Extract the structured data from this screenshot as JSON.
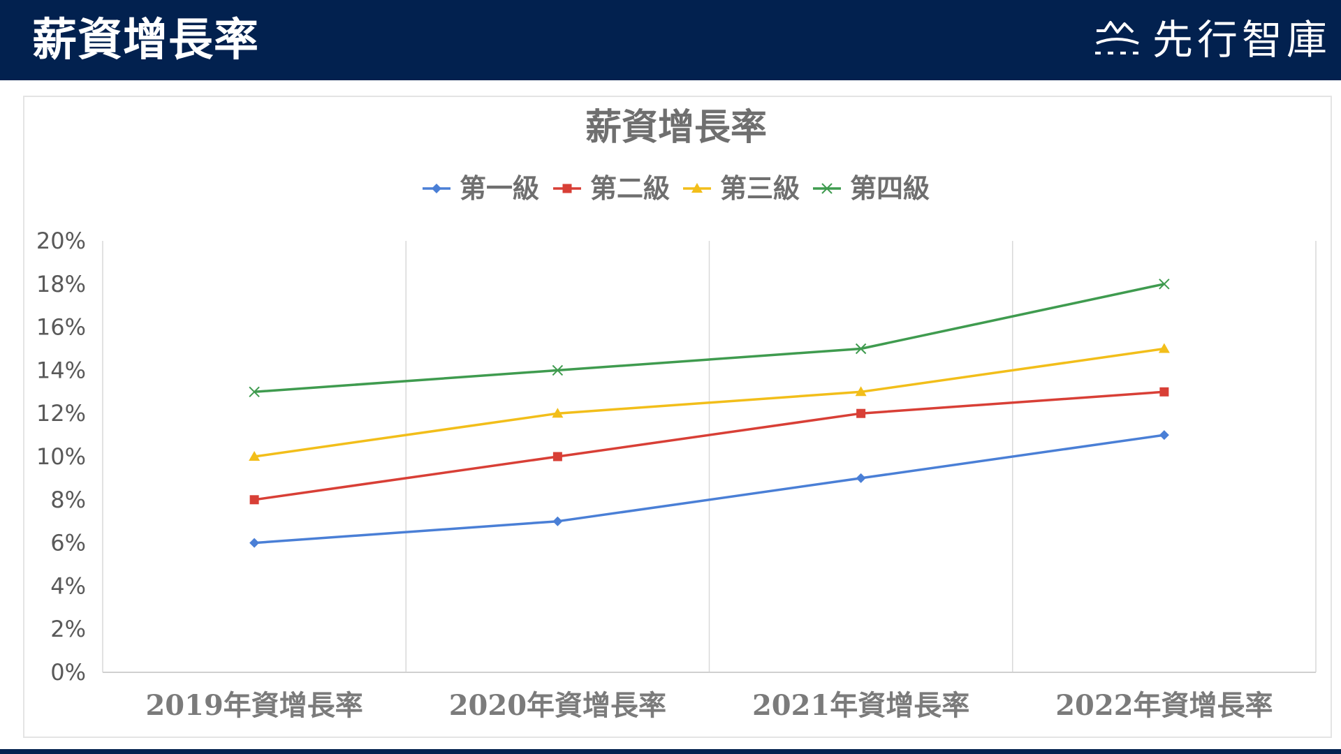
{
  "header": {
    "title": "薪資增長率",
    "logo_text": "先行智庫",
    "logo_icon": "wave-logo-icon",
    "background": "#02214f"
  },
  "chart_data": {
    "type": "line",
    "title": "薪資增長率",
    "categories": [
      "2019年資增長率",
      "2020年資增長率",
      "2021年資增長率",
      "2022年資增長率"
    ],
    "series": [
      {
        "name": "第一級",
        "values": [
          0.06,
          0.07,
          0.09,
          0.11
        ],
        "color": "#4a7fd6",
        "marker": "diamond"
      },
      {
        "name": "第二級",
        "values": [
          0.08,
          0.1,
          0.12,
          0.13
        ],
        "color": "#d83f36",
        "marker": "square"
      },
      {
        "name": "第三級",
        "values": [
          0.1,
          0.12,
          0.13,
          0.15
        ],
        "color": "#f2be1a",
        "marker": "triangle"
      },
      {
        "name": "第四級",
        "values": [
          0.13,
          0.14,
          0.15,
          0.18
        ],
        "color": "#3f9b4f",
        "marker": "x"
      }
    ],
    "ylim": [
      0,
      0.2
    ],
    "yticks": [
      "0%",
      "2%",
      "4%",
      "6%",
      "8%",
      "10%",
      "12%",
      "14%",
      "16%",
      "18%",
      "20%"
    ],
    "xlabel": "",
    "ylabel": "",
    "legend": "top",
    "grid": "vertical"
  }
}
